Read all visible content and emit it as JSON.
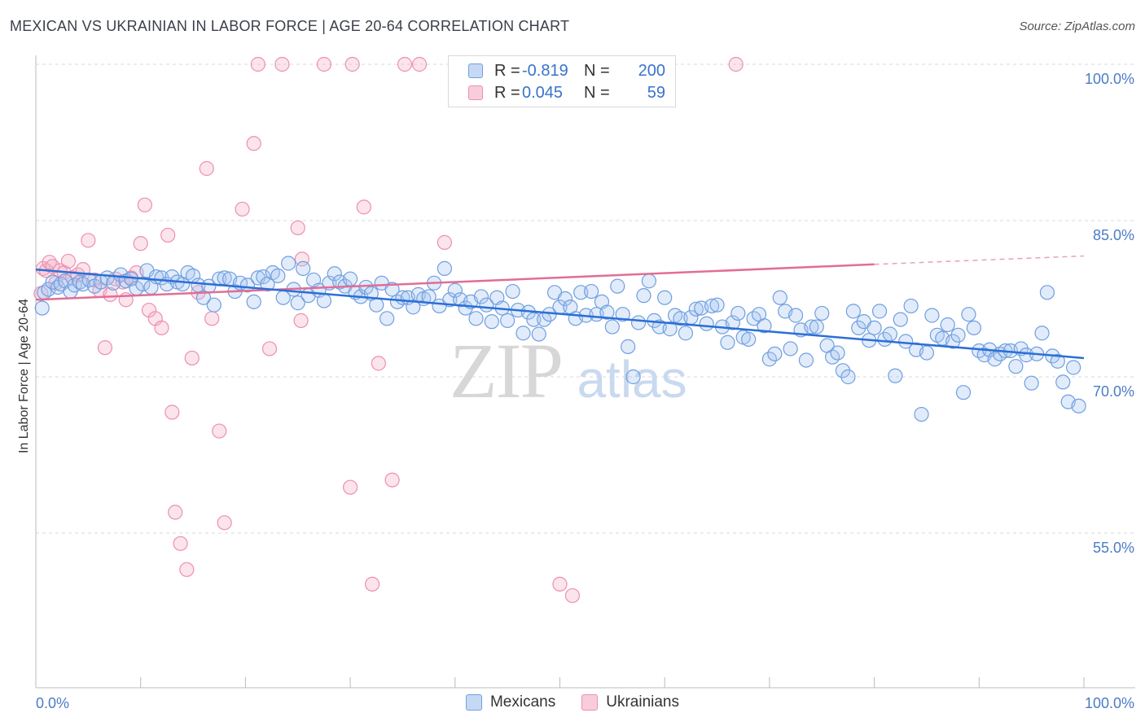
{
  "header": {
    "title": "MEXICAN VS UKRAINIAN IN LABOR FORCE | AGE 20-64 CORRELATION CHART",
    "source": "Source: ZipAtlas.com"
  },
  "legend": {
    "rows": [
      {
        "r_label": "R =",
        "r_value": "-0.819",
        "n_label": "N =",
        "n_value": "200",
        "color": "#6f9fe0"
      },
      {
        "r_label": "R =",
        "r_value": "0.045",
        "n_label": "N =",
        "n_value": "59",
        "color": "#ee8fae"
      }
    ]
  },
  "bottom_legend": {
    "mexicans": "Mexicans",
    "ukrainians": "Ukrainians"
  },
  "watermark": {
    "zip": "ZIP",
    "atlas": "atlas"
  },
  "chart_data": {
    "type": "scatter",
    "title": "MEXICAN VS UKRAINIAN IN LABOR FORCE | AGE 20-64 CORRELATION CHART",
    "xlabel": "",
    "ylabel": "In Labor Force | Age 20-64",
    "xlim": [
      0,
      100
    ],
    "ylim": [
      40,
      102
    ],
    "x_tick_labels": [
      "0.0%",
      "100.0%"
    ],
    "y_ticks": [
      55,
      70,
      85,
      100
    ],
    "y_tick_labels": [
      "55.0%",
      "70.0%",
      "85.0%",
      "100.0%"
    ],
    "grid": "horizontal dashed",
    "legend_position": "top-center",
    "series": [
      {
        "name": "Mexicans",
        "color": "#6f9fe0",
        "trend": {
          "x": [
            0,
            100
          ],
          "y": [
            80.3,
            71.8
          ]
        },
        "points": [
          [
            0.6,
            76.6
          ],
          [
            0.8,
            78.1
          ],
          [
            1.2,
            78.4
          ],
          [
            1.6,
            79.1
          ],
          [
            2.1,
            78.6
          ],
          [
            2.4,
            78.9
          ],
          [
            2.8,
            79.2
          ],
          [
            3.3,
            78.2
          ],
          [
            3.7,
            78.8
          ],
          [
            4.2,
            79.1
          ],
          [
            4.5,
            78.9
          ],
          [
            5.1,
            79.3
          ],
          [
            5.6,
            78.7
          ],
          [
            6.2,
            79.1
          ],
          [
            6.8,
            79.5
          ],
          [
            7.4,
            79.0
          ],
          [
            8.1,
            79.8
          ],
          [
            8.6,
            79.2
          ],
          [
            9.1,
            79.4
          ],
          [
            9.6,
            78.5
          ],
          [
            10.2,
            78.9
          ],
          [
            10.6,
            80.2
          ],
          [
            11.0,
            78.6
          ],
          [
            11.5,
            79.6
          ],
          [
            12.0,
            79.5
          ],
          [
            12.5,
            78.9
          ],
          [
            13.0,
            79.6
          ],
          [
            13.5,
            79.1
          ],
          [
            14.0,
            78.9
          ],
          [
            14.5,
            80.0
          ],
          [
            15.0,
            79.7
          ],
          [
            15.5,
            78.8
          ],
          [
            16.0,
            77.6
          ],
          [
            16.5,
            78.7
          ],
          [
            17.0,
            76.9
          ],
          [
            17.5,
            79.4
          ],
          [
            18.0,
            79.5
          ],
          [
            18.5,
            79.4
          ],
          [
            19.0,
            78.2
          ],
          [
            19.5,
            79.0
          ],
          [
            20.2,
            78.8
          ],
          [
            20.8,
            77.2
          ],
          [
            21.2,
            79.5
          ],
          [
            21.7,
            79.6
          ],
          [
            22.1,
            78.9
          ],
          [
            22.6,
            80.0
          ],
          [
            23.1,
            79.7
          ],
          [
            23.6,
            77.6
          ],
          [
            24.1,
            80.9
          ],
          [
            24.6,
            78.4
          ],
          [
            25.0,
            77.1
          ],
          [
            25.5,
            80.4
          ],
          [
            26.0,
            77.8
          ],
          [
            26.5,
            79.3
          ],
          [
            27.0,
            78.3
          ],
          [
            27.5,
            77.3
          ],
          [
            28.0,
            79.0
          ],
          [
            28.5,
            79.9
          ],
          [
            29.0,
            79.1
          ],
          [
            29.5,
            78.7
          ],
          [
            30.0,
            79.4
          ],
          [
            30.5,
            78.1
          ],
          [
            31.0,
            77.7
          ],
          [
            31.5,
            78.6
          ],
          [
            32.0,
            78.0
          ],
          [
            32.5,
            76.9
          ],
          [
            33.0,
            79.0
          ],
          [
            33.5,
            75.6
          ],
          [
            34.0,
            78.4
          ],
          [
            34.5,
            77.2
          ],
          [
            35.0,
            77.6
          ],
          [
            35.5,
            77.6
          ],
          [
            36.0,
            76.7
          ],
          [
            36.5,
            77.9
          ],
          [
            37.0,
            77.5
          ],
          [
            37.5,
            77.7
          ],
          [
            38.0,
            79.0
          ],
          [
            38.5,
            76.8
          ],
          [
            39.0,
            80.4
          ],
          [
            39.5,
            77.4
          ],
          [
            40.0,
            78.3
          ],
          [
            40.5,
            77.4
          ],
          [
            41.0,
            76.6
          ],
          [
            41.5,
            77.2
          ],
          [
            42.0,
            75.6
          ],
          [
            42.5,
            77.7
          ],
          [
            43.0,
            76.9
          ],
          [
            43.5,
            75.3
          ],
          [
            44.0,
            77.6
          ],
          [
            44.5,
            76.6
          ],
          [
            45.0,
            75.4
          ],
          [
            45.5,
            78.2
          ],
          [
            46.0,
            76.4
          ],
          [
            46.5,
            74.2
          ],
          [
            47.0,
            76.2
          ],
          [
            47.5,
            75.5
          ],
          [
            48.0,
            74.1
          ],
          [
            48.5,
            75.5
          ],
          [
            49.0,
            76.0
          ],
          [
            49.5,
            78.1
          ],
          [
            50.0,
            76.7
          ],
          [
            50.5,
            77.5
          ],
          [
            51.0,
            76.7
          ],
          [
            51.5,
            75.6
          ],
          [
            52.0,
            78.1
          ],
          [
            52.5,
            75.9
          ],
          [
            53.0,
            78.2
          ],
          [
            53.5,
            76.0
          ],
          [
            54.0,
            77.2
          ],
          [
            54.5,
            76.2
          ],
          [
            55.0,
            74.8
          ],
          [
            55.5,
            78.7
          ],
          [
            56.0,
            76.0
          ],
          [
            56.5,
            72.9
          ],
          [
            57.0,
            70.0
          ],
          [
            57.5,
            75.2
          ],
          [
            58.0,
            77.8
          ],
          [
            58.5,
            79.2
          ],
          [
            59.0,
            75.4
          ],
          [
            59.5,
            74.8
          ],
          [
            60.0,
            77.6
          ],
          [
            60.5,
            74.6
          ],
          [
            61.0,
            75.9
          ],
          [
            61.5,
            75.6
          ],
          [
            62.0,
            74.2
          ],
          [
            62.5,
            75.7
          ],
          [
            63.0,
            76.5
          ],
          [
            63.5,
            76.6
          ],
          [
            64.0,
            75.1
          ],
          [
            64.5,
            76.8
          ],
          [
            65.0,
            76.9
          ],
          [
            65.5,
            74.8
          ],
          [
            66.0,
            73.3
          ],
          [
            66.5,
            75.2
          ],
          [
            67.0,
            76.1
          ],
          [
            67.5,
            73.8
          ],
          [
            68.0,
            73.6
          ],
          [
            68.5,
            75.6
          ],
          [
            69.0,
            76.0
          ],
          [
            69.5,
            74.9
          ],
          [
            70.0,
            71.7
          ],
          [
            70.5,
            72.2
          ],
          [
            71.0,
            77.6
          ],
          [
            71.5,
            76.3
          ],
          [
            72.0,
            72.7
          ],
          [
            72.5,
            75.9
          ],
          [
            73.0,
            74.5
          ],
          [
            73.5,
            71.6
          ],
          [
            74.0,
            74.8
          ],
          [
            74.5,
            74.8
          ],
          [
            75.0,
            76.1
          ],
          [
            75.5,
            73.0
          ],
          [
            76.0,
            71.9
          ],
          [
            76.5,
            72.3
          ],
          [
            77.0,
            70.6
          ],
          [
            77.5,
            70.0
          ],
          [
            78.0,
            76.3
          ],
          [
            78.5,
            74.7
          ],
          [
            79.0,
            75.3
          ],
          [
            79.5,
            73.5
          ],
          [
            80.0,
            74.7
          ],
          [
            80.5,
            76.3
          ],
          [
            81.0,
            73.6
          ],
          [
            81.5,
            74.1
          ],
          [
            82.0,
            70.1
          ],
          [
            82.5,
            75.5
          ],
          [
            83.0,
            73.4
          ],
          [
            83.5,
            76.8
          ],
          [
            84.0,
            72.6
          ],
          [
            84.5,
            66.4
          ],
          [
            85.0,
            72.3
          ],
          [
            85.5,
            75.9
          ],
          [
            86.0,
            74.0
          ],
          [
            86.5,
            73.7
          ],
          [
            87.0,
            75.0
          ],
          [
            87.5,
            73.4
          ],
          [
            88.0,
            74.0
          ],
          [
            88.5,
            68.5
          ],
          [
            89.0,
            76.0
          ],
          [
            89.5,
            74.7
          ],
          [
            90.0,
            72.5
          ],
          [
            90.5,
            72.1
          ],
          [
            91.0,
            72.6
          ],
          [
            91.5,
            71.7
          ],
          [
            92.0,
            72.2
          ],
          [
            92.5,
            72.5
          ],
          [
            93.0,
            72.5
          ],
          [
            93.5,
            71.0
          ],
          [
            94.0,
            72.7
          ],
          [
            94.5,
            72.1
          ],
          [
            95.0,
            69.4
          ],
          [
            95.5,
            72.2
          ],
          [
            96.0,
            74.2
          ],
          [
            96.5,
            78.1
          ],
          [
            97.0,
            72.0
          ],
          [
            97.5,
            71.5
          ],
          [
            98.0,
            69.5
          ],
          [
            98.5,
            67.6
          ],
          [
            99.0,
            70.9
          ],
          [
            99.5,
            67.2
          ]
        ]
      },
      {
        "name": "Ukrainians",
        "color": "#ee8fae",
        "trend": {
          "x": [
            0,
            80
          ],
          "y": [
            77.4,
            80.8
          ]
        },
        "trend_dashed": {
          "x": [
            80,
            100
          ],
          "y": [
            80.8,
            81.6
          ]
        },
        "points": [
          [
            0.5,
            78.0
          ],
          [
            0.7,
            80.4
          ],
          [
            1.0,
            80.2
          ],
          [
            1.3,
            81.0
          ],
          [
            1.6,
            80.6
          ],
          [
            1.9,
            79.0
          ],
          [
            2.3,
            80.2
          ],
          [
            2.7,
            80.0
          ],
          [
            3.1,
            81.1
          ],
          [
            3.5,
            79.5
          ],
          [
            4.0,
            79.8
          ],
          [
            4.5,
            80.3
          ],
          [
            5.0,
            83.1
          ],
          [
            5.6,
            79.3
          ],
          [
            6.1,
            78.3
          ],
          [
            6.6,
            72.8
          ],
          [
            7.1,
            77.9
          ],
          [
            7.6,
            79.4
          ],
          [
            8.3,
            79.1
          ],
          [
            8.6,
            77.4
          ],
          [
            9.1,
            79.5
          ],
          [
            9.6,
            80.0
          ],
          [
            10.0,
            82.8
          ],
          [
            10.4,
            86.5
          ],
          [
            10.8,
            76.4
          ],
          [
            11.4,
            75.6
          ],
          [
            12.0,
            74.7
          ],
          [
            12.6,
            83.6
          ],
          [
            13.0,
            66.6
          ],
          [
            13.3,
            57.0
          ],
          [
            13.8,
            54.0
          ],
          [
            14.4,
            51.5
          ],
          [
            14.9,
            71.8
          ],
          [
            15.5,
            78.1
          ],
          [
            16.3,
            90.0
          ],
          [
            16.8,
            75.6
          ],
          [
            17.5,
            64.8
          ],
          [
            18.0,
            56.0
          ],
          [
            19.7,
            86.1
          ],
          [
            20.8,
            92.4
          ],
          [
            21.2,
            100.0
          ],
          [
            22.3,
            72.7
          ],
          [
            23.5,
            100.0
          ],
          [
            25.0,
            84.3
          ],
          [
            25.3,
            75.4
          ],
          [
            25.4,
            81.3
          ],
          [
            27.5,
            100.0
          ],
          [
            30.0,
            59.4
          ],
          [
            30.2,
            100.0
          ],
          [
            31.3,
            86.3
          ],
          [
            32.1,
            50.1
          ],
          [
            32.7,
            71.3
          ],
          [
            34.0,
            60.1
          ],
          [
            35.2,
            100.0
          ],
          [
            36.6,
            100.0
          ],
          [
            39.0,
            82.9
          ],
          [
            50.0,
            50.1
          ],
          [
            51.2,
            49.0
          ],
          [
            66.8,
            100.0
          ]
        ]
      }
    ]
  }
}
